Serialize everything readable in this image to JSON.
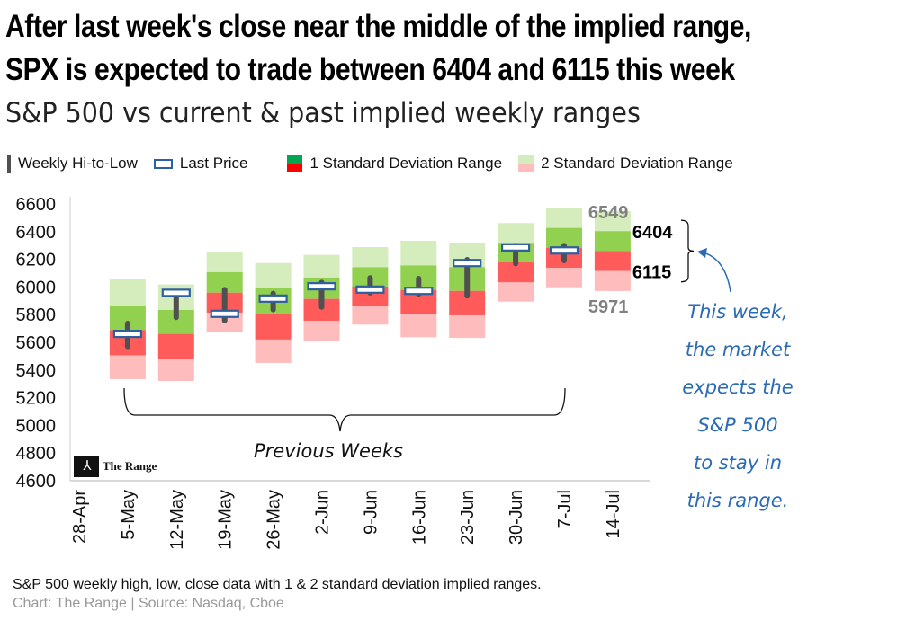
{
  "title_line1": "After last week's close near the middle of the implied range,",
  "title_line2": "SPX is expected to trade between  6404 and 6115 this week",
  "subtitle": "S&P 500 vs current & past implied weekly ranges",
  "legend": {
    "hilo": "Weekly Hi-to-Low",
    "last": "Last Price",
    "sd1": "1 Standard Deviation Range",
    "sd2": "2 Standard Deviation Range"
  },
  "colors": {
    "sd1_up": "#92d050",
    "sd1_dn": "#ff5b5b",
    "sd2_up": "#d5ecbc",
    "sd2_dn": "#ffbcbc",
    "hilo": "#505050",
    "last": "#2e5f9e",
    "ann": "#2a6bb5"
  },
  "chart_data": {
    "type": "bar",
    "title": "S&P 500 vs current & past implied weekly ranges",
    "ylim": [
      4600,
      6600
    ],
    "yticks": [
      "6600",
      "6400",
      "6200",
      "6000",
      "5800",
      "5600",
      "5400",
      "5200",
      "5000",
      "4800",
      "4600"
    ],
    "categories": [
      "28-Apr",
      "5-May",
      "12-May",
      "19-May",
      "26-May",
      "2-Jun",
      "9-Jun",
      "16-Jun",
      "23-Jun",
      "30-Jun",
      "7-Jul",
      "14-Jul"
    ],
    "weeks": [
      {
        "cat": "5-May",
        "sd2_hi": 6057,
        "sd1_hi": 5866,
        "mid": 5689,
        "sd1_lo": 5505,
        "sd2_lo": 5334,
        "high": 5736,
        "low": 5570,
        "close": 5661
      },
      {
        "cat": "12-May",
        "sd2_hi": 6018,
        "sd1_hi": 5834,
        "mid": 5661,
        "sd1_lo": 5483,
        "sd2_lo": 5321,
        "high": 5962,
        "low": 5780,
        "close": 5958
      },
      {
        "cat": "19-May",
        "sd2_hi": 6256,
        "sd1_hi": 6107,
        "mid": 5959,
        "sd1_lo": 5814,
        "sd2_lo": 5678,
        "high": 5981,
        "low": 5758,
        "close": 5806
      },
      {
        "cat": "26-May",
        "sd2_hi": 6173,
        "sd1_hi": 5990,
        "mid": 5803,
        "sd1_lo": 5620,
        "sd2_lo": 5451,
        "high": 5953,
        "low": 5836,
        "close": 5916
      },
      {
        "cat": "2-Jun",
        "sd2_hi": 6232,
        "sd1_hi": 6068,
        "mid": 5914,
        "sd1_lo": 5756,
        "sd2_lo": 5611,
        "high": 6033,
        "low": 5855,
        "close": 6005
      },
      {
        "cat": "9-Jun",
        "sd2_hi": 6288,
        "sd1_hi": 6143,
        "mid": 6003,
        "sd1_lo": 5860,
        "sd2_lo": 5728,
        "high": 6066,
        "low": 5957,
        "close": 5981
      },
      {
        "cat": "16-Jun",
        "sd2_hi": 6334,
        "sd1_hi": 6156,
        "mid": 5979,
        "sd1_lo": 5801,
        "sd2_lo": 5637,
        "high": 6061,
        "low": 5949,
        "close": 5972
      },
      {
        "cat": "23-Jun",
        "sd2_hi": 6321,
        "sd1_hi": 6143,
        "mid": 5972,
        "sd1_lo": 5795,
        "sd2_lo": 5632,
        "high": 6197,
        "low": 5936,
        "close": 6173
      },
      {
        "cat": "30-Jun",
        "sd2_hi": 6462,
        "sd1_hi": 6319,
        "mid": 6178,
        "sd1_lo": 6033,
        "sd2_lo": 5894,
        "high": 6299,
        "low": 6169,
        "close": 6286
      },
      {
        "cat": "7-Jul",
        "sd2_hi": 6574,
        "sd1_hi": 6427,
        "mid": 6284,
        "sd1_lo": 6139,
        "sd2_lo": 5998,
        "high": 6299,
        "low": 6191,
        "close": 6264
      },
      {
        "cat": "14-Jul",
        "sd2_hi": 6549,
        "sd1_hi": 6404,
        "mid": 6260,
        "sd1_lo": 6115,
        "sd2_lo": 5971
      }
    ],
    "labels": {
      "sd2_hi": "6549",
      "sd1_hi": "6404",
      "sd1_lo": "6115",
      "sd2_lo": "5971"
    }
  },
  "annotation": [
    "This week,",
    "the market",
    "expects the",
    "S&P 500",
    "to stay in",
    "this range."
  ],
  "previous_weeks": "Previous Weeks",
  "logo_text": "The Range",
  "footnote": "S&P 500 weekly high, low, close data with  1 & 2 standard deviation implied ranges.",
  "source": "Chart: The Range | Source: Nasdaq, Cboe"
}
